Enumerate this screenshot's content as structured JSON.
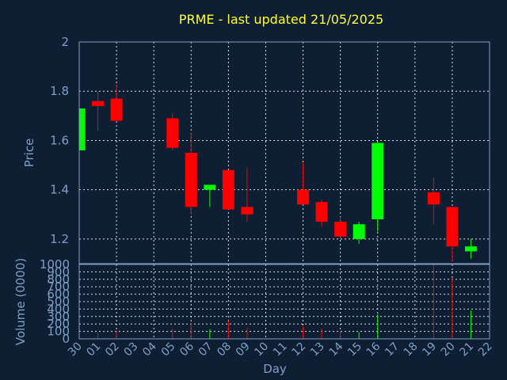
{
  "chart_data": {
    "type": "candlestick",
    "title": "PRME - last updated 21/05/2025",
    "xlabel": "Day",
    "price_axis": {
      "label": "Price",
      "ylim": [
        1.1,
        2.0
      ],
      "ticks": [
        "1.2",
        "1.4",
        "1.6",
        "1.8",
        "2"
      ]
    },
    "volume_axis": {
      "label": "Volume (0000)",
      "ylim": [
        0,
        1000
      ],
      "ticks": [
        "0",
        "100",
        "200",
        "300",
        "400",
        "500",
        "600",
        "700",
        "800",
        "900",
        "1000"
      ]
    },
    "x_ticks": [
      "30",
      "01",
      "02",
      "03",
      "04",
      "05",
      "06",
      "07",
      "08",
      "09",
      "10",
      "11",
      "12",
      "13",
      "14",
      "15",
      "16",
      "17",
      "18",
      "19",
      "20",
      "21",
      "22"
    ],
    "grid": true,
    "colors": {
      "up": "#00ff00",
      "down": "#ff0000",
      "background": "#0f1f33",
      "axis": "#7f9fc6",
      "title": "#ffff33"
    },
    "candles": [
      {
        "x": 0,
        "open": 1.56,
        "high": 1.73,
        "low": 1.56,
        "close": 1.73,
        "volume": 0
      },
      {
        "x": 1,
        "open": 1.76,
        "high": 1.8,
        "low": 1.64,
        "close": 1.74,
        "volume": 80
      },
      {
        "x": 2,
        "open": 1.77,
        "high": 1.83,
        "low": 1.68,
        "close": 1.68,
        "volume": 110
      },
      {
        "x": 5,
        "open": 1.69,
        "high": 1.71,
        "low": 1.56,
        "close": 1.57,
        "volume": 140
      },
      {
        "x": 6,
        "open": 1.55,
        "high": 1.63,
        "low": 1.3,
        "close": 1.33,
        "volume": 220
      },
      {
        "x": 7,
        "open": 1.4,
        "high": 1.42,
        "low": 1.33,
        "close": 1.42,
        "volume": 130
      },
      {
        "x": 8,
        "open": 1.48,
        "high": 1.48,
        "low": 1.32,
        "close": 1.32,
        "volume": 240
      },
      {
        "x": 9,
        "open": 1.33,
        "high": 1.49,
        "low": 1.27,
        "close": 1.3,
        "volume": 150
      },
      {
        "x": 12,
        "open": 1.4,
        "high": 1.51,
        "low": 1.34,
        "close": 1.34,
        "volume": 170
      },
      {
        "x": 13,
        "open": 1.35,
        "high": 1.36,
        "low": 1.25,
        "close": 1.27,
        "volume": 140
      },
      {
        "x": 14,
        "open": 1.27,
        "high": 1.29,
        "low": 1.2,
        "close": 1.21,
        "volume": 100
      },
      {
        "x": 15,
        "open": 1.2,
        "high": 1.27,
        "low": 1.18,
        "close": 1.26,
        "volume": 90
      },
      {
        "x": 16,
        "open": 1.28,
        "high": 1.59,
        "low": 1.23,
        "close": 1.59,
        "volume": 330
      },
      {
        "x": 19,
        "open": 1.39,
        "high": 1.45,
        "low": 1.26,
        "close": 1.34,
        "volume": 1000
      },
      {
        "x": 20,
        "open": 1.33,
        "high": 1.33,
        "low": 1.11,
        "close": 1.17,
        "volume": 820
      },
      {
        "x": 21,
        "open": 1.15,
        "high": 1.2,
        "low": 1.12,
        "close": 1.17,
        "volume": 380
      }
    ]
  }
}
